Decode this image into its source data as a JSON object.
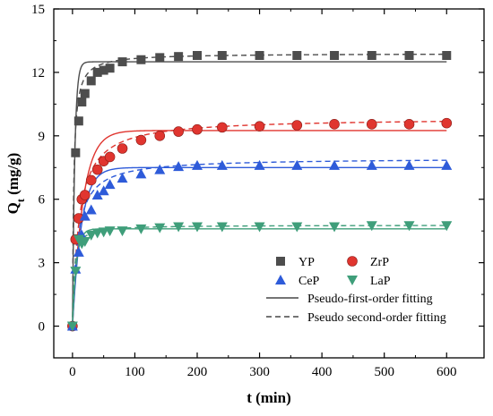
{
  "chart_data": {
    "type": "scatter",
    "xlabel": "t (min)",
    "ylabel_main": "Q",
    "ylabel_sub": "t",
    "ylabel_unit": " (mg/g)",
    "xlim": [
      -30,
      660
    ],
    "ylim": [
      -1.5,
      15
    ],
    "xticks": [
      0,
      100,
      200,
      300,
      400,
      500,
      600
    ],
    "yticks": [
      0,
      3,
      6,
      9,
      12,
      15
    ],
    "grid": false,
    "legend_position": "bottom-right",
    "series": [
      {
        "name": "YP",
        "marker": "square",
        "color": "#4d4d4d",
        "x": [
          0,
          5,
          10,
          15,
          20,
          30,
          40,
          50,
          60,
          80,
          110,
          140,
          170,
          200,
          240,
          300,
          360,
          420,
          480,
          540,
          600
        ],
        "y": [
          0,
          8.2,
          9.7,
          10.6,
          11.0,
          11.6,
          12.0,
          12.1,
          12.2,
          12.5,
          12.6,
          12.7,
          12.75,
          12.8,
          12.8,
          12.8,
          12.8,
          12.8,
          12.8,
          12.8,
          12.8
        ],
        "fit1": {
          "qe": 12.5,
          "k": 0.28
        },
        "fit2": {
          "qe": 12.9,
          "k": 0.04
        }
      },
      {
        "name": "ZrP",
        "marker": "circle",
        "color": "#e0352f",
        "x": [
          0,
          5,
          10,
          15,
          20,
          30,
          40,
          50,
          60,
          80,
          110,
          140,
          170,
          200,
          240,
          300,
          360,
          420,
          480,
          540,
          600
        ],
        "y": [
          0,
          4.1,
          5.1,
          6.0,
          6.2,
          6.9,
          7.4,
          7.8,
          8.0,
          8.4,
          8.8,
          9.0,
          9.2,
          9.3,
          9.4,
          9.45,
          9.5,
          9.55,
          9.55,
          9.55,
          9.6
        ],
        "fit1": {
          "qe": 9.25,
          "k": 0.06
        },
        "fit2": {
          "qe": 9.85,
          "k": 0.0098
        }
      },
      {
        "name": "CeP",
        "marker": "triangle-up",
        "color": "#2e5bd9",
        "x": [
          0,
          5,
          10,
          15,
          20,
          30,
          40,
          50,
          60,
          80,
          110,
          140,
          170,
          200,
          240,
          300,
          360,
          420,
          480,
          540,
          600
        ],
        "y": [
          0,
          2.7,
          3.5,
          4.3,
          5.2,
          5.5,
          6.2,
          6.4,
          6.7,
          7.0,
          7.2,
          7.4,
          7.55,
          7.6,
          7.6,
          7.6,
          7.6,
          7.6,
          7.6,
          7.6,
          7.6
        ],
        "fit1": {
          "qe": 7.5,
          "k": 0.07
        },
        "fit2": {
          "qe": 7.95,
          "k": 0.0155
        }
      },
      {
        "name": "LaP",
        "marker": "triangle-down",
        "color": "#3f9e7a",
        "x": [
          0,
          5,
          10,
          15,
          20,
          30,
          40,
          50,
          60,
          80,
          110,
          140,
          170,
          200,
          240,
          300,
          360,
          420,
          480,
          540,
          600
        ],
        "y": [
          0,
          2.6,
          4.1,
          3.9,
          4.0,
          4.3,
          4.4,
          4.45,
          4.5,
          4.5,
          4.6,
          4.65,
          4.7,
          4.7,
          4.7,
          4.7,
          4.7,
          4.7,
          4.75,
          4.75,
          4.75
        ],
        "fit1": {
          "qe": 4.6,
          "k": 0.16
        },
        "fit2": {
          "qe": 4.78,
          "k": 0.08
        }
      }
    ],
    "fit_lines": [
      {
        "name": "Pseudo-first-order fitting",
        "style": "solid"
      },
      {
        "name": "Pseudo second-order fitting",
        "style": "dashed"
      }
    ]
  }
}
